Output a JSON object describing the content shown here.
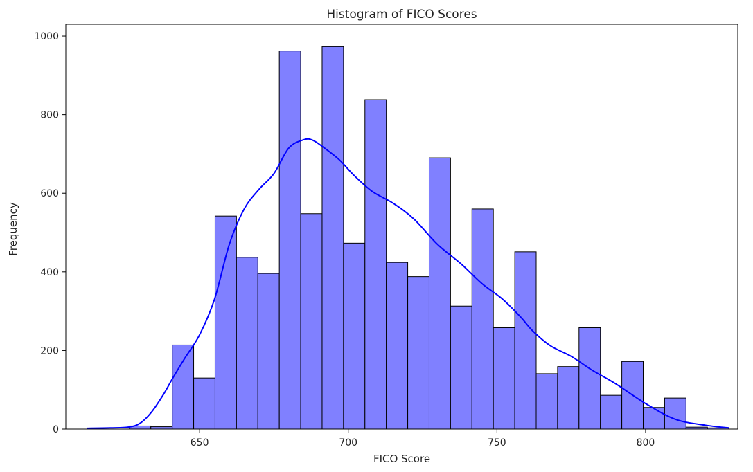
{
  "chart_data": {
    "type": "bar",
    "title": "Histogram of FICO Scores",
    "xlabel": "FICO Score",
    "ylabel": "Frequency",
    "xlim": [
      605,
      831
    ],
    "ylim": [
      0,
      1030
    ],
    "xticks": [
      650,
      700,
      750,
      800
    ],
    "yticks": [
      0,
      200,
      400,
      600,
      800,
      1000
    ],
    "grid": false,
    "bar_color": "#8080ff",
    "edge_color": "#000000",
    "kde_color": "#0000ff",
    "bins": [
      {
        "x0": 612.0,
        "x1": 619.2,
        "count": 0
      },
      {
        "x0": 619.2,
        "x1": 626.4,
        "count": 0
      },
      {
        "x0": 626.4,
        "x1": 633.6,
        "count": 8
      },
      {
        "x0": 633.6,
        "x1": 640.8,
        "count": 6
      },
      {
        "x0": 640.8,
        "x1": 648.0,
        "count": 214
      },
      {
        "x0": 648.0,
        "x1": 655.2,
        "count": 130
      },
      {
        "x0": 655.2,
        "x1": 662.4,
        "count": 542
      },
      {
        "x0": 662.4,
        "x1": 669.6,
        "count": 437
      },
      {
        "x0": 669.6,
        "x1": 676.8,
        "count": 396
      },
      {
        "x0": 676.8,
        "x1": 684.0,
        "count": 962
      },
      {
        "x0": 684.0,
        "x1": 691.2,
        "count": 548
      },
      {
        "x0": 691.2,
        "x1": 698.4,
        "count": 973
      },
      {
        "x0": 698.4,
        "x1": 705.6,
        "count": 473
      },
      {
        "x0": 705.6,
        "x1": 712.8,
        "count": 838
      },
      {
        "x0": 712.8,
        "x1": 720.0,
        "count": 424
      },
      {
        "x0": 720.0,
        "x1": 727.2,
        "count": 388
      },
      {
        "x0": 727.2,
        "x1": 734.4,
        "count": 690
      },
      {
        "x0": 734.4,
        "x1": 741.6,
        "count": 313
      },
      {
        "x0": 741.6,
        "x1": 748.8,
        "count": 560
      },
      {
        "x0": 748.8,
        "x1": 756.0,
        "count": 258
      },
      {
        "x0": 756.0,
        "x1": 763.2,
        "count": 451
      },
      {
        "x0": 763.2,
        "x1": 770.4,
        "count": 141
      },
      {
        "x0": 770.4,
        "x1": 777.6,
        "count": 159
      },
      {
        "x0": 777.6,
        "x1": 784.8,
        "count": 258
      },
      {
        "x0": 784.8,
        "x1": 792.0,
        "count": 86
      },
      {
        "x0": 792.0,
        "x1": 799.2,
        "count": 172
      },
      {
        "x0": 799.2,
        "x1": 806.4,
        "count": 55
      },
      {
        "x0": 806.4,
        "x1": 813.6,
        "count": 79
      },
      {
        "x0": 813.6,
        "x1": 820.8,
        "count": 5
      },
      {
        "x0": 820.8,
        "x1": 828.0,
        "count": 3
      }
    ],
    "kde": {
      "x": [
        612,
        620,
        626,
        630,
        634,
        638,
        641,
        645,
        650,
        655,
        660,
        665,
        670,
        675,
        680,
        685,
        688,
        692,
        697,
        702,
        708,
        715,
        722,
        730,
        738,
        745,
        752,
        758,
        762,
        768,
        775,
        782,
        790,
        800,
        810,
        820,
        828
      ],
      "y": [
        2,
        3,
        5,
        15,
        45,
        90,
        130,
        180,
        240,
        330,
        470,
        560,
        610,
        650,
        715,
        736,
        735,
        715,
        685,
        645,
        605,
        575,
        535,
        470,
        420,
        370,
        330,
        285,
        250,
        212,
        185,
        150,
        115,
        65,
        25,
        10,
        3
      ]
    }
  }
}
